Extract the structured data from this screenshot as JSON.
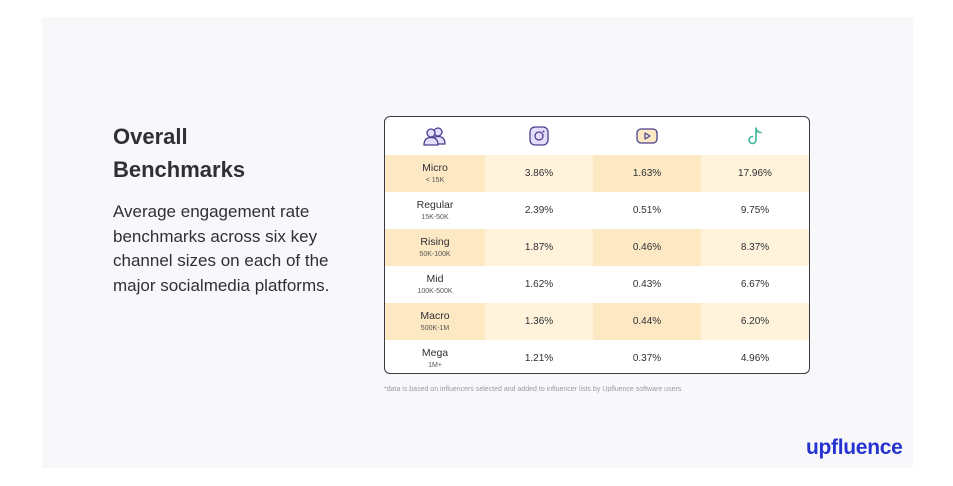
{
  "heading": {
    "line1": "Overall",
    "line2": "Benchmarks"
  },
  "description": "Average engagement rate benchmarks across six key channel sizes on each of the major socialmedia platforms.",
  "table": {
    "header_icons": [
      "people-icon",
      "instagram-icon",
      "youtube-icon",
      "tiktok-icon"
    ],
    "rows": [
      {
        "label": "Micro",
        "range": "< 15K",
        "instagram": "3.86%",
        "youtube": "1.63%",
        "tiktok": "17.96%"
      },
      {
        "label": "Regular",
        "range": "15K-50K",
        "instagram": "2.39%",
        "youtube": "0.51%",
        "tiktok": "9.75%"
      },
      {
        "label": "Rising",
        "range": "50K-100K",
        "instagram": "1.87%",
        "youtube": "0.46%",
        "tiktok": "8.37%"
      },
      {
        "label": "Mid",
        "range": "100K-500K",
        "instagram": "1.62%",
        "youtube": "0.43%",
        "tiktok": "6.67%"
      },
      {
        "label": "Macro",
        "range": "500K-1M",
        "instagram": "1.36%",
        "youtube": "0.44%",
        "tiktok": "6.20%"
      },
      {
        "label": "Mega",
        "range": "1M+",
        "instagram": "1.21%",
        "youtube": "0.37%",
        "tiktok": "4.96%"
      }
    ]
  },
  "footnote": "*data is based on influencers selected and added to influencer lists by Upfluence software users",
  "logo": "upfluence",
  "colors": {
    "accent_logo": "#2733d1",
    "row_shade_light": "#fff3dc",
    "row_shade_dark": "#fce8c3",
    "icon_fill": "#e6dcfb",
    "icon_stroke": "#4a3f8f",
    "tiktok_stroke": "#3fb89a"
  }
}
